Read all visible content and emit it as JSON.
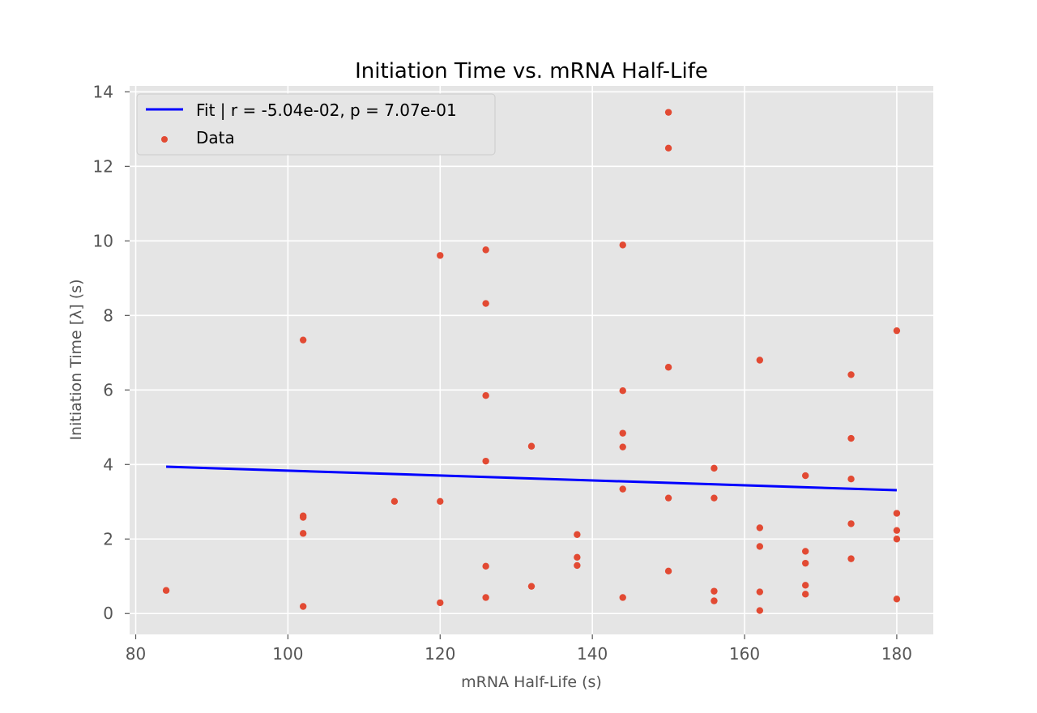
{
  "chart_data": {
    "type": "scatter",
    "title": "Initiation Time vs. mRNA Half-Life",
    "xlabel": "mRNA Half-Life (s)",
    "ylabel": "Initiation Time [λ] (s)",
    "xlim": [
      79.2,
      184.8
    ],
    "ylim": [
      -0.56,
      14.16
    ],
    "xticks": [
      80,
      100,
      120,
      140,
      160,
      180
    ],
    "yticks": [
      0,
      2,
      4,
      6,
      8,
      10,
      12,
      14
    ],
    "grid": true,
    "legend_position": "upper-left",
    "colors": {
      "background": "#e5e5e5",
      "grid": "#ffffff",
      "fit": "#0000ff",
      "data": "#e24a33",
      "tick_text": "#555555",
      "title_text": "#000000"
    },
    "series": [
      {
        "name": "Fit | r = -5.04e-02, p = 7.07e-01",
        "kind": "line",
        "x": [
          84,
          180
        ],
        "y": [
          3.94,
          3.31
        ]
      },
      {
        "name": "Data",
        "kind": "scatter",
        "x": [
          84,
          102,
          102,
          102,
          102,
          102,
          114,
          120,
          120,
          120,
          126,
          126,
          126,
          126,
          126,
          126,
          132,
          132,
          138,
          138,
          138,
          144,
          144,
          144,
          144,
          144,
          144,
          150,
          150,
          150,
          150,
          150,
          156,
          156,
          156,
          156,
          162,
          162,
          162,
          162,
          162,
          168,
          168,
          168,
          168,
          168,
          174,
          174,
          174,
          174,
          174,
          180,
          180,
          180,
          180,
          180
        ],
        "y": [
          0.62,
          7.34,
          2.62,
          2.58,
          2.15,
          0.19,
          3.01,
          9.61,
          3.01,
          0.29,
          9.76,
          8.32,
          5.85,
          4.09,
          1.27,
          0.43,
          4.49,
          0.73,
          2.12,
          1.51,
          1.29,
          9.89,
          5.98,
          4.84,
          4.47,
          3.34,
          0.43,
          13.45,
          12.49,
          6.61,
          3.1,
          1.14,
          3.9,
          3.1,
          0.6,
          0.34,
          6.8,
          2.3,
          1.8,
          0.58,
          0.08,
          3.7,
          1.67,
          1.35,
          0.76,
          0.52,
          6.41,
          4.7,
          3.61,
          2.41,
          1.47,
          7.59,
          2.69,
          2.23,
          2.0,
          0.39
        ]
      }
    ]
  }
}
